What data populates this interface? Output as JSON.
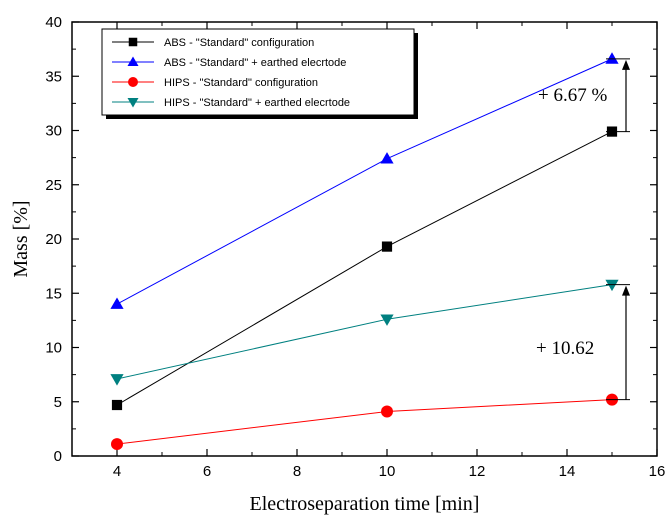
{
  "chart_data": {
    "type": "line",
    "xlabel": "Electroseparation time [min]",
    "ylabel": "Mass [%]",
    "xlim": [
      3,
      16
    ],
    "ylim": [
      0,
      40
    ],
    "xticks": [
      4,
      6,
      8,
      10,
      12,
      14,
      16
    ],
    "yticks": [
      0,
      5,
      10,
      15,
      20,
      25,
      30,
      35,
      40
    ],
    "grid": false,
    "legend_position": "top-left",
    "x": [
      4,
      10,
      15
    ],
    "series": [
      {
        "name": "ABS - \"Standard\" configuration",
        "values": [
          4.7,
          19.3,
          29.9
        ],
        "color": "#000000",
        "marker": "square"
      },
      {
        "name": "ABS - \"Standard\" + earthed elecrtode",
        "values": [
          14.0,
          27.4,
          36.6
        ],
        "color": "#0000ff",
        "marker": "triangle-up"
      },
      {
        "name": "HIPS - \"Standard\" configuration",
        "values": [
          1.1,
          4.1,
          5.2
        ],
        "color": "#ff0000",
        "marker": "circle"
      },
      {
        "name": "HIPS - \"Standard\" + earthed elecrtode",
        "values": [
          7.1,
          12.6,
          15.8
        ],
        "color": "#008080",
        "marker": "triangle-down"
      }
    ],
    "annotations": [
      {
        "text": "+ 6.67 %",
        "x": 15,
        "y_from": 29.9,
        "y_to": 36.6
      },
      {
        "text": "+ 10.62",
        "x": 15,
        "y_from": 5.2,
        "y_to": 15.8
      }
    ]
  }
}
